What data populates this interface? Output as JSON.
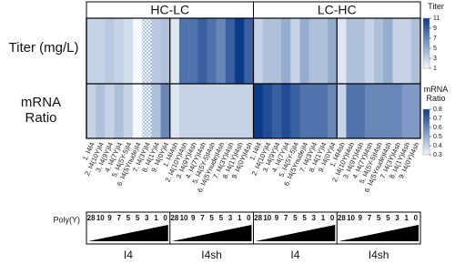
{
  "chart_data": {
    "type": "heatmap",
    "row_labels": [
      "Titer (mg/L)",
      "mRNA Ratio"
    ],
    "poly_label": "Poly(Y)",
    "colormap": [
      "#f5f9fd",
      "#0a3a8a"
    ],
    "missing_pattern": "crosshatch",
    "panels": [
      {
        "title": "HC-LC",
        "groups": [
          {
            "name": "I4",
            "columns": [
              "1. I4I4",
              "2. I4(10Y)I4",
              "3. I4(9Y)I4",
              "4. I4(7Y)I4",
              "5. I4(5Y-5)I4",
              "6. I4(5Ynude)I4",
              "7. I4(3Y)I4",
              "8. I4(1Y)I4",
              "9. I4(0Y)I4"
            ],
            "poly": [
              28,
              10,
              9,
              7,
              5,
              5,
              3,
              1,
              0
            ],
            "titer": [
              3,
              3,
              3.5,
              3,
              2.5,
              1,
              null,
              3.5,
              4
            ],
            "mrna": [
              0.4,
              0.45,
              0.4,
              0.45,
              0.4,
              0.3,
              null,
              0.45,
              0.6
            ]
          },
          {
            "name": "I4sh",
            "columns": [
              "1. I4I4sh",
              "2. I4(10Y)I4sh",
              "3. I4(9Y)I4sh",
              "4. I4(7Y)I4sh",
              "5. I4(5Y-5)I4sh",
              "6. I4(5Ynude)I4sh",
              "7. I4(3Y)I4sh",
              "8. I4(1Y)I4sh",
              "9. I4(0Y)I4sh"
            ],
            "poly": [
              28,
              10,
              9,
              7,
              5,
              5,
              3,
              1,
              0
            ],
            "titer": [
              2,
              8,
              8,
              9,
              8,
              7,
              9,
              11,
              9
            ],
            "mrna": [
              0.35,
              0.4,
              0.4,
              0.4,
              0.4,
              0.4,
              0.4,
              0.4,
              0.4
            ]
          }
        ]
      },
      {
        "title": "LC-HC",
        "groups": [
          {
            "name": "I4",
            "columns": [
              "1. I4I4",
              "2. I4(10Y)I4",
              "3. I4(9Y)I4",
              "4. I4(7Y)I4",
              "5. I4(5Y-5)I4",
              "6. I4(5Ynude)I4",
              "7. I4(3Y)I4",
              "8. I4(1Y)I4",
              "9. I4(0Y)I4"
            ],
            "poly": [
              28,
              10,
              9,
              7,
              5,
              5,
              3,
              1,
              0
            ],
            "titer": [
              3,
              4,
              4,
              5,
              3,
              5,
              4,
              4,
              5
            ],
            "mrna": [
              0.8,
              0.75,
              0.7,
              0.75,
              0.7,
              0.65,
              0.65,
              0.65,
              0.6
            ]
          },
          {
            "name": "I4sh",
            "columns": [
              "1. I4I4sh",
              "2. I4(10Y)I4sh",
              "3. I4(9Y)I4sh",
              "4. I4(7Y)I4sh",
              "5. I4(5Y-5)I4sh",
              "6. I4(5Ynude)I4sh",
              "7. I4(3Y)I4sh",
              "8. I4(1Y)I4sh",
              "9. I4(0Y)I4sh"
            ],
            "poly": [
              28,
              10,
              9,
              7,
              5,
              5,
              3,
              1,
              0
            ],
            "titer": [
              2,
              4,
              4,
              3,
              4,
              5,
              3,
              3,
              4
            ],
            "mrna": [
              0.4,
              0.65,
              0.65,
              0.6,
              0.6,
              0.6,
              0.6,
              0.55,
              0.55
            ]
          }
        ]
      }
    ],
    "colorbars": [
      {
        "title": "Titer",
        "lim": [
          1,
          11
        ],
        "ticks": [
          1,
          3,
          5,
          7,
          9,
          11
        ]
      },
      {
        "title": "mRNA Ratio",
        "lim": [
          0.3,
          0.8
        ],
        "ticks": [
          0.3,
          0.4,
          0.5,
          0.6,
          0.7,
          0.8
        ]
      }
    ]
  }
}
